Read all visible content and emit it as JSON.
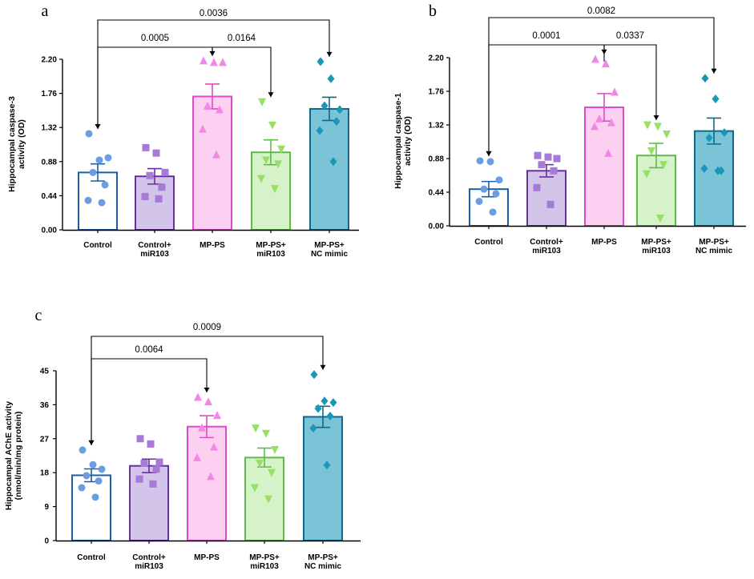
{
  "chart_data": [
    {
      "panel": "a",
      "type": "bar",
      "ylabel": [
        "Hippocampal caspase-3",
        "activity (OD)"
      ],
      "yticks": [
        "0.00",
        "0.44",
        "0.88",
        "1.32",
        "1.76",
        "2.20"
      ],
      "ylim": [
        0,
        2.2
      ],
      "categories": [
        [
          "Control"
        ],
        [
          "Control+",
          "miR103"
        ],
        [
          "MP-PS"
        ],
        [
          "MP-PS+",
          "miR103"
        ],
        [
          "MP-PS+",
          "NC mimic"
        ]
      ],
      "means": [
        0.74,
        0.69,
        1.72,
        1.0,
        1.56
      ],
      "sem": [
        0.11,
        0.1,
        0.16,
        0.16,
        0.15
      ],
      "points": [
        [
          1.24,
          0.9,
          0.93,
          0.74,
          0.58,
          0.38,
          0.35
        ],
        [
          1.06,
          0.99,
          0.74,
          0.7,
          0.55,
          0.43,
          0.4
        ],
        [
          2.18,
          2.16,
          2.16,
          1.6,
          1.55,
          1.3,
          0.97
        ],
        [
          1.65,
          1.35,
          1.04,
          0.9,
          0.85,
          0.66,
          0.53
        ],
        [
          2.17,
          1.95,
          1.55,
          1.6,
          1.4,
          1.28,
          0.88
        ]
      ],
      "comparisons": [
        {
          "from": 0,
          "to": 2,
          "label": "0.0005"
        },
        {
          "from": 2,
          "to": 3,
          "label": "0.0164"
        },
        {
          "from": 0,
          "to": 4,
          "label": "0.0036"
        }
      ]
    },
    {
      "panel": "b",
      "type": "bar",
      "ylabel": [
        "Hippocampal caspase-1",
        "activity (OD)"
      ],
      "yticks": [
        "0.00",
        "0.44",
        "0.88",
        "1.32",
        "1.76",
        "2.20"
      ],
      "ylim": [
        0,
        2.2
      ],
      "categories": [
        [
          "Control"
        ],
        [
          "Control+",
          "miR103"
        ],
        [
          "MP-PS"
        ],
        [
          "MP-PS+",
          "miR103"
        ],
        [
          "MP-PS+",
          "NC mimic"
        ]
      ],
      "means": [
        0.48,
        0.72,
        1.55,
        0.92,
        1.24
      ],
      "sem": [
        0.1,
        0.08,
        0.18,
        0.16,
        0.17
      ],
      "points": [
        [
          0.85,
          0.84,
          0.6,
          0.48,
          0.42,
          0.32,
          0.18
        ],
        [
          0.92,
          0.9,
          0.88,
          0.8,
          0.72,
          0.5,
          0.28
        ],
        [
          2.18,
          2.12,
          1.75,
          1.4,
          1.35,
          1.3,
          0.95
        ],
        [
          1.32,
          1.3,
          1.2,
          0.98,
          0.8,
          0.68,
          0.1
        ],
        [
          1.93,
          1.66,
          1.22,
          1.15,
          0.72,
          0.75,
          0.72
        ]
      ],
      "comparisons": [
        {
          "from": 0,
          "to": 2,
          "label": "0.0001"
        },
        {
          "from": 2,
          "to": 3,
          "label": "0.0337"
        },
        {
          "from": 0,
          "to": 4,
          "label": "0.0082"
        }
      ]
    },
    {
      "panel": "c",
      "type": "bar",
      "ylabel": [
        "Hippocampal AChE activity",
        "(nmol/min/mg protein)"
      ],
      "yticks": [
        "0",
        "9",
        "18",
        "27",
        "36",
        "45"
      ],
      "ylim": [
        0,
        45
      ],
      "categories": [
        [
          "Control"
        ],
        [
          "Control+",
          "miR103"
        ],
        [
          "MP-PS"
        ],
        [
          "MP-PS+",
          "miR103"
        ],
        [
          "MP-PS+",
          "NC mimic"
        ]
      ],
      "means": [
        17.3,
        19.8,
        30.2,
        22.0,
        32.8
      ],
      "sem": [
        1.7,
        1.8,
        2.9,
        2.5,
        2.8
      ],
      "points": [
        [
          24.0,
          20.1,
          18.9,
          17.2,
          15.8,
          14.0,
          11.5
        ],
        [
          27.0,
          25.6,
          20.8,
          20.5,
          18.9,
          16.3,
          15.0
        ],
        [
          38.0,
          36.8,
          33.2,
          29.9,
          24.8,
          22.0,
          17.0
        ],
        [
          29.8,
          28.4,
          24.1,
          20.5,
          18.0,
          14.0,
          11.0
        ],
        [
          44.0,
          37.0,
          36.6,
          35.0,
          33.0,
          29.8,
          20.0
        ]
      ],
      "comparisons": [
        {
          "from": 0,
          "to": 2,
          "label": "0.0064"
        },
        {
          "from": 0,
          "to": 4,
          "label": "0.0009"
        }
      ]
    }
  ],
  "style": {
    "bar_fills": [
      "#ffffff",
      "#d3c4ea",
      "#fcd0f1",
      "#d6f2c9",
      "#7bc4d8"
    ],
    "bar_strokes": [
      "#1b5fa6",
      "#6a2f9e",
      "#df4cc6",
      "#5fbc46",
      "#0a6a8f"
    ],
    "point_colors": [
      "#6b9ee0",
      "#a67ad6",
      "#f287e6",
      "#97df66",
      "#1a97b7"
    ],
    "marker_shapes": [
      "circle",
      "square",
      "triangle-up",
      "triangle-down",
      "diamond"
    ],
    "axis_color": "#000000",
    "bracket_color": "#000000"
  }
}
